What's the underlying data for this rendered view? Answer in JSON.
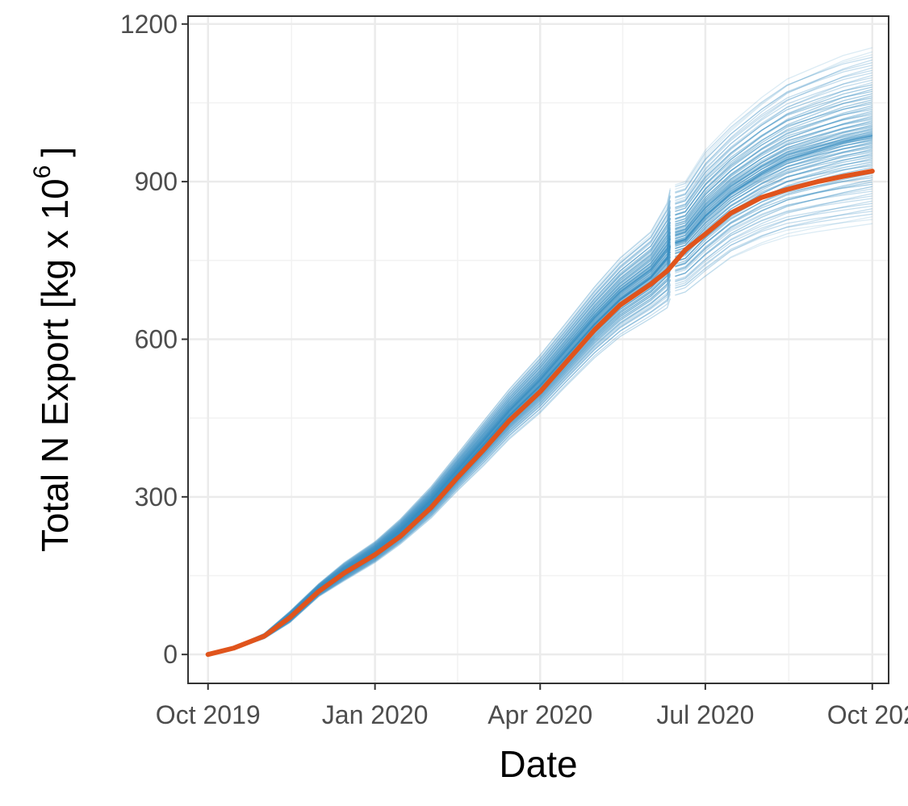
{
  "chart_data": {
    "type": "line",
    "xlabel": "Date",
    "ylabel_main": "Total N Export [kg x 10",
    "ylabel_sup": "6",
    "ylabel_close": "]",
    "xlim": [
      "2019-09-20",
      "2020-10-10"
    ],
    "ylim": [
      -55,
      1215
    ],
    "x_ticks": [
      {
        "date": "2019-10-01",
        "label": "Oct 2019"
      },
      {
        "date": "2020-01-01",
        "label": "Jan 2020"
      },
      {
        "date": "2020-04-01",
        "label": "Apr 2020"
      },
      {
        "date": "2020-07-01",
        "label": "Jul 2020"
      },
      {
        "date": "2020-10-01",
        "label": "Oct 202"
      }
    ],
    "y_ticks": [
      {
        "value": 0,
        "label": "0"
      },
      {
        "value": 300,
        "label": "300"
      },
      {
        "value": 600,
        "label": "600"
      },
      {
        "value": 900,
        "label": "900"
      },
      {
        "value": 1200,
        "label": "1200"
      }
    ],
    "grid": true,
    "ensemble_color": "#3a8fc2",
    "median_color": "#e0541c",
    "ensemble_count": 100,
    "median": {
      "dates": [
        "2019-10-01",
        "2019-10-15",
        "2019-11-01",
        "2019-11-15",
        "2019-12-01",
        "2019-12-15",
        "2020-01-01",
        "2020-01-15",
        "2020-02-01",
        "2020-02-15",
        "2020-03-01",
        "2020-03-15",
        "2020-04-01",
        "2020-04-15",
        "2020-05-01",
        "2020-05-15",
        "2020-06-01",
        "2020-06-10",
        "2020-06-20",
        "2020-07-01",
        "2020-07-15",
        "2020-08-01",
        "2020-08-15",
        "2020-09-01",
        "2020-09-15",
        "2020-10-01"
      ],
      "values": [
        0,
        12,
        35,
        70,
        120,
        155,
        190,
        225,
        280,
        335,
        390,
        445,
        500,
        555,
        618,
        665,
        705,
        730,
        770,
        800,
        840,
        870,
        885,
        900,
        910,
        920
      ]
    },
    "ensemble_spread": {
      "dates": [
        "2019-10-01",
        "2019-10-15",
        "2019-11-01",
        "2019-11-15",
        "2019-12-01",
        "2019-12-15",
        "2020-01-01",
        "2020-01-15",
        "2020-02-01",
        "2020-02-15",
        "2020-03-01",
        "2020-03-15",
        "2020-04-01",
        "2020-04-15",
        "2020-05-01",
        "2020-05-15",
        "2020-06-01",
        "2020-06-10",
        "2020-06-20",
        "2020-07-01",
        "2020-07-15",
        "2020-08-01",
        "2020-08-15",
        "2020-09-01",
        "2020-09-15",
        "2020-10-01"
      ],
      "min": [
        0,
        10,
        30,
        60,
        110,
        140,
        175,
        210,
        260,
        310,
        360,
        410,
        460,
        510,
        565,
        605,
        640,
        660,
        690,
        720,
        755,
        780,
        795,
        805,
        812,
        820
      ],
      "max": [
        0,
        14,
        40,
        82,
        135,
        175,
        215,
        258,
        320,
        380,
        445,
        505,
        570,
        630,
        700,
        755,
        805,
        860,
        900,
        960,
        1010,
        1060,
        1095,
        1120,
        1140,
        1155
      ]
    },
    "gap_date": "2020-06-13"
  }
}
